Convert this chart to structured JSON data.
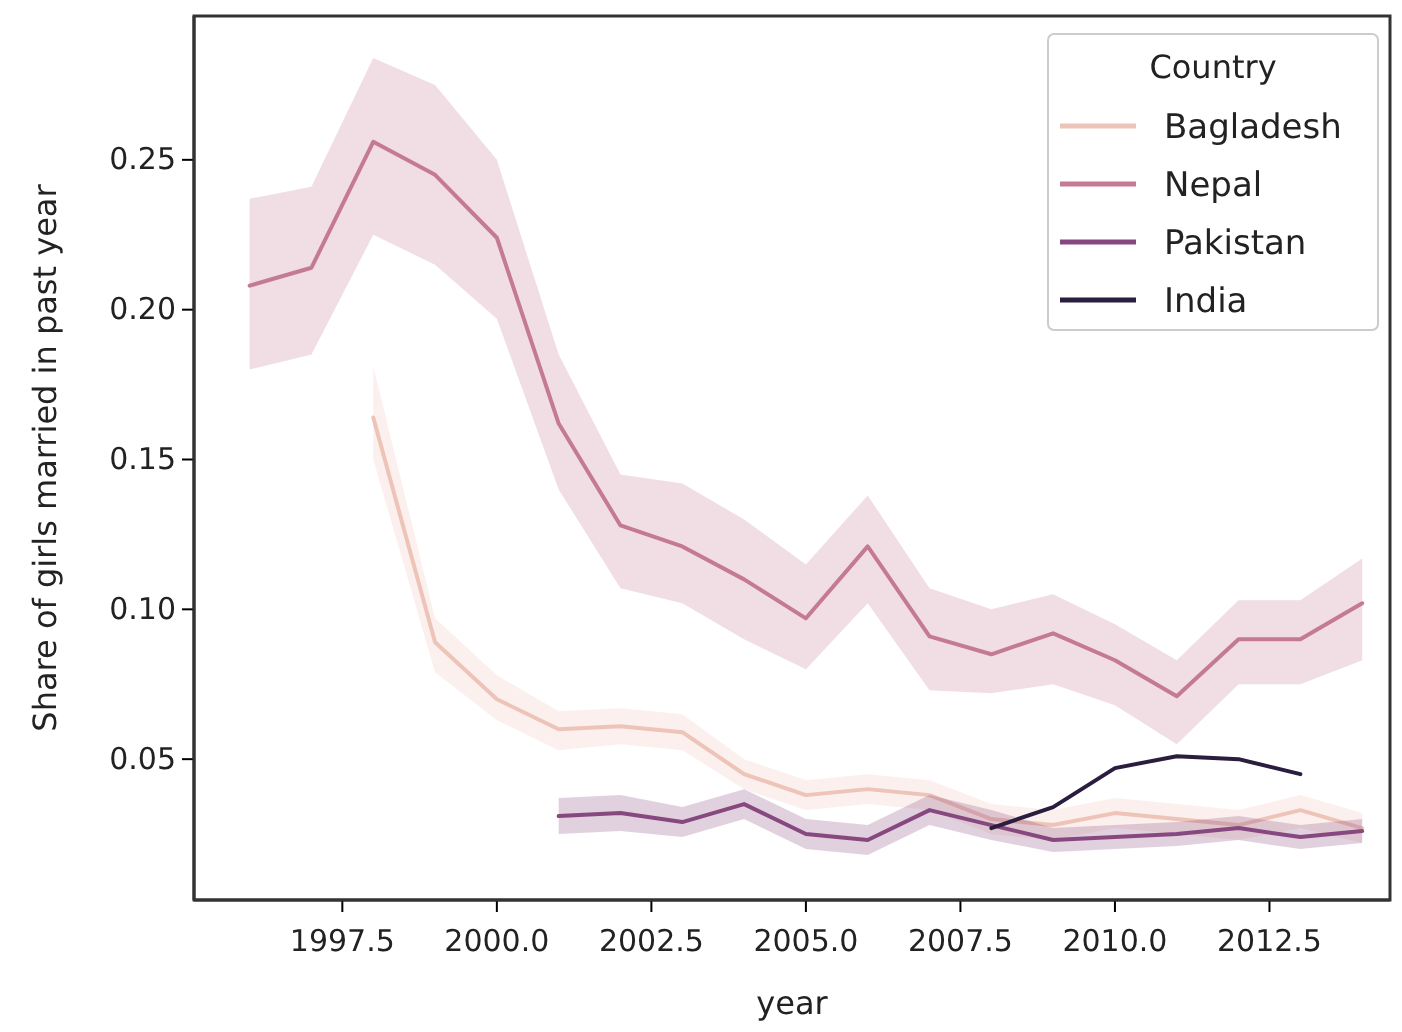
{
  "chart_data": {
    "type": "line",
    "xlabel": "year",
    "ylabel": "Share of girls married in past year",
    "legend_title": "Country",
    "legend": "top right",
    "grid": false,
    "marker": "none",
    "line_style": "solid",
    "xlim": [
      1995.1,
      2014.45
    ],
    "ylim": [
      0.003,
      0.298
    ],
    "xticks": [
      {
        "value": 1997.5,
        "label": "1997.5"
      },
      {
        "value": 2000,
        "label": "2000.0"
      },
      {
        "value": 2002.5,
        "label": "2002.5"
      },
      {
        "value": 2005,
        "label": "2005.0"
      },
      {
        "value": 2007.5,
        "label": "2007.5"
      },
      {
        "value": 2010,
        "label": "2010.0"
      },
      {
        "value": 2012.5,
        "label": "2012.5"
      }
    ],
    "yticks": [
      {
        "value": 0.05,
        "label": "0.05"
      },
      {
        "value": 0.1,
        "label": "0.10"
      },
      {
        "value": 0.15,
        "label": "0.15"
      },
      {
        "value": 0.2,
        "label": "0.20"
      },
      {
        "value": 0.25,
        "label": "0.25"
      }
    ],
    "series": [
      {
        "name": "Bagladesh",
        "color": "#eec3b8",
        "x": [
          1998,
          1999,
          2000,
          2001,
          2002,
          2003,
          2004,
          2005,
          2006,
          2007,
          2008,
          2009,
          2010,
          2011,
          2012,
          2013,
          2014
        ],
        "values": [
          0.164,
          0.089,
          0.07,
          0.06,
          0.061,
          0.059,
          0.045,
          0.038,
          0.04,
          0.038,
          0.03,
          0.028,
          0.032,
          0.03,
          0.028,
          0.033,
          0.027
        ],
        "lower": [
          0.15,
          0.079,
          0.063,
          0.053,
          0.055,
          0.053,
          0.04,
          0.033,
          0.035,
          0.033,
          0.025,
          0.023,
          0.027,
          0.025,
          0.023,
          0.027,
          0.022
        ],
        "upper": [
          0.181,
          0.097,
          0.078,
          0.066,
          0.067,
          0.065,
          0.05,
          0.043,
          0.045,
          0.043,
          0.035,
          0.033,
          0.037,
          0.035,
          0.033,
          0.038,
          0.032
        ]
      },
      {
        "name": "Nepal",
        "color": "#c57a93",
        "x": [
          1996,
          1997,
          1998,
          1999,
          2000,
          2001,
          2002,
          2003,
          2004,
          2005,
          2006,
          2007,
          2008,
          2009,
          2010,
          2011,
          2012,
          2013,
          2014
        ],
        "values": [
          0.208,
          0.214,
          0.256,
          0.245,
          0.224,
          0.162,
          0.128,
          0.121,
          0.11,
          0.097,
          0.121,
          0.091,
          0.085,
          0.092,
          0.083,
          0.071,
          0.09,
          0.09,
          0.102
        ],
        "lower": [
          0.18,
          0.185,
          0.225,
          0.215,
          0.197,
          0.14,
          0.107,
          0.102,
          0.09,
          0.08,
          0.102,
          0.073,
          0.072,
          0.075,
          0.068,
          0.055,
          0.075,
          0.075,
          0.083
        ],
        "upper": [
          0.237,
          0.241,
          0.284,
          0.275,
          0.25,
          0.185,
          0.145,
          0.142,
          0.13,
          0.115,
          0.138,
          0.107,
          0.1,
          0.105,
          0.095,
          0.083,
          0.103,
          0.103,
          0.117
        ]
      },
      {
        "name": "Pakistan",
        "color": "#86487f",
        "x": [
          2001,
          2002,
          2003,
          2004,
          2005,
          2006,
          2007,
          2008,
          2009,
          2010,
          2011,
          2012,
          2013,
          2014
        ],
        "values": [
          0.031,
          0.032,
          0.029,
          0.035,
          0.025,
          0.023,
          0.033,
          0.028,
          0.023,
          0.024,
          0.025,
          0.027,
          0.024,
          0.026
        ],
        "lower": [
          0.025,
          0.026,
          0.024,
          0.03,
          0.02,
          0.018,
          0.028,
          0.023,
          0.019,
          0.02,
          0.021,
          0.023,
          0.02,
          0.022
        ],
        "upper": [
          0.037,
          0.038,
          0.034,
          0.04,
          0.03,
          0.028,
          0.038,
          0.033,
          0.027,
          0.028,
          0.029,
          0.031,
          0.028,
          0.03
        ]
      },
      {
        "name": "India",
        "color": "#2b1d3d",
        "x": [
          2008,
          2009,
          2010,
          2011,
          2012,
          2013
        ],
        "values": [
          0.027,
          0.034,
          0.047,
          0.051,
          0.05,
          0.045
        ]
      }
    ]
  }
}
